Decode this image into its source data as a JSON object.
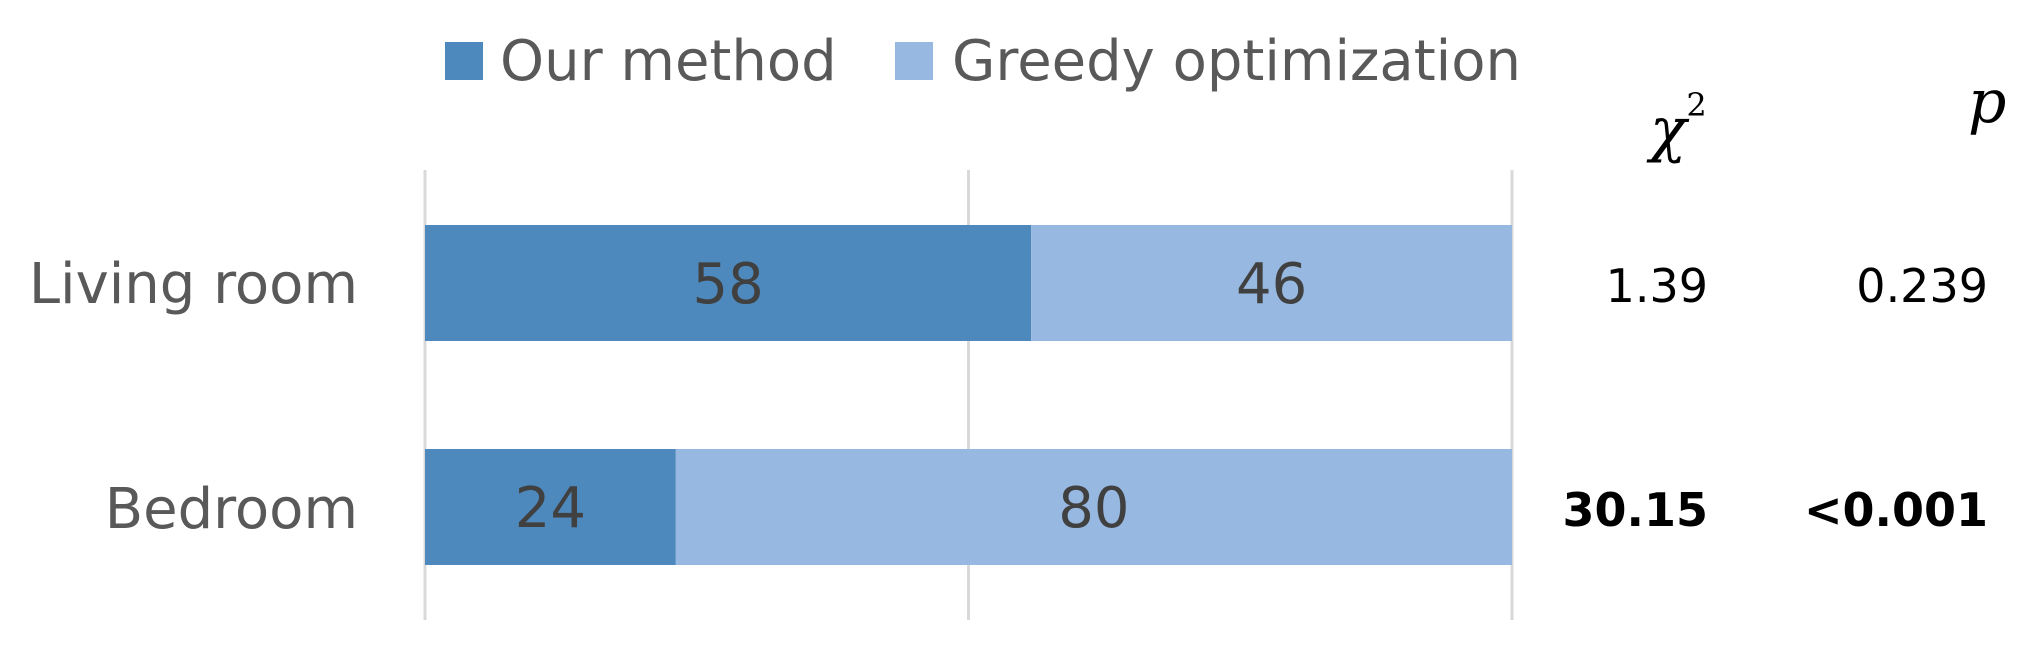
{
  "colors": {
    "our_method": "#4e89bd",
    "greedy": "#97b8e0",
    "grid": "#d9d9d9"
  },
  "chart_data": {
    "type": "bar",
    "orientation": "horizontal",
    "stacked": true,
    "categories": [
      "Living room",
      "Bedroom"
    ],
    "series": [
      {
        "name": "Our method",
        "values": [
          58,
          24
        ]
      },
      {
        "name": "Greedy optimization",
        "values": [
          46,
          80
        ]
      }
    ],
    "xlim": [
      0,
      104
    ],
    "grid": true,
    "legend": "top-center",
    "stats": {
      "chi_label": "χ",
      "chi_sup": "2",
      "p_label": "p",
      "rows": [
        {
          "chi2": "1.39",
          "p": "0.239",
          "bold": false
        },
        {
          "chi2": "30.15",
          "p": "<0.001",
          "bold": true
        }
      ]
    }
  }
}
